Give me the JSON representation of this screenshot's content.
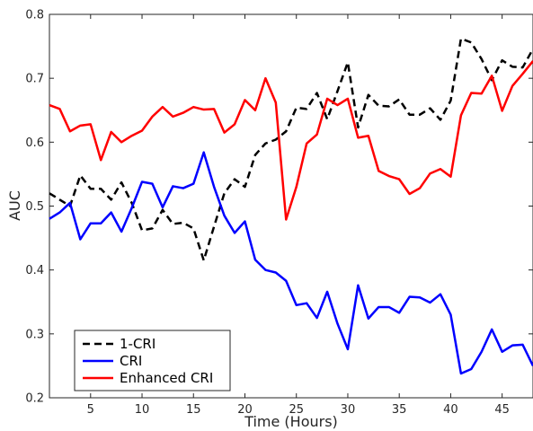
{
  "chart_data": {
    "type": "line",
    "xlabel": "Time (Hours)",
    "ylabel": "AUC",
    "xlim": [
      1,
      48
    ],
    "ylim": [
      0.2,
      0.8
    ],
    "xticks": [
      5,
      10,
      15,
      20,
      25,
      30,
      35,
      40,
      45
    ],
    "yticks": [
      0.2,
      0.3,
      0.4,
      0.5,
      0.6,
      0.7,
      0.8
    ],
    "grid": false,
    "legend_position": "bottom-left",
    "x": [
      1,
      2,
      3,
      4,
      5,
      6,
      7,
      8,
      9,
      10,
      11,
      12,
      13,
      14,
      15,
      16,
      17,
      18,
      19,
      20,
      21,
      22,
      23,
      24,
      25,
      26,
      27,
      28,
      29,
      30,
      31,
      32,
      33,
      34,
      35,
      36,
      37,
      38,
      39,
      40,
      41,
      42,
      43,
      44,
      45,
      46,
      47,
      48
    ],
    "series": [
      {
        "name": "1-CRI",
        "color": "#000000",
        "dash": "dashed",
        "values": [
          0.52,
          0.51,
          0.5,
          0.548,
          0.527,
          0.527,
          0.51,
          0.537,
          0.505,
          0.462,
          0.465,
          0.494,
          0.472,
          0.474,
          0.465,
          0.415,
          0.468,
          0.52,
          0.542,
          0.53,
          0.58,
          0.598,
          0.604,
          0.617,
          0.654,
          0.652,
          0.677,
          0.636,
          0.68,
          0.725,
          0.623,
          0.674,
          0.657,
          0.656,
          0.667,
          0.643,
          0.643,
          0.653,
          0.635,
          0.665,
          0.762,
          0.756,
          0.73,
          0.697,
          0.728,
          0.718,
          0.717,
          0.746
        ]
      },
      {
        "name": "CRI",
        "color": "#0000ff",
        "dash": "solid",
        "values": [
          0.48,
          0.49,
          0.505,
          0.448,
          0.473,
          0.473,
          0.49,
          0.46,
          0.497,
          0.538,
          0.535,
          0.498,
          0.531,
          0.528,
          0.535,
          0.584,
          0.53,
          0.485,
          0.458,
          0.476,
          0.416,
          0.4,
          0.396,
          0.383,
          0.345,
          0.348,
          0.325,
          0.366,
          0.316,
          0.276,
          0.376,
          0.324,
          0.342,
          0.342,
          0.333,
          0.358,
          0.357,
          0.349,
          0.362,
          0.33,
          0.238,
          0.245,
          0.272,
          0.307,
          0.272,
          0.282,
          0.283,
          0.25
        ]
      },
      {
        "name": "Enhanced CRI",
        "color": "#ff0000",
        "dash": "solid",
        "values": [
          0.658,
          0.652,
          0.617,
          0.626,
          0.628,
          0.572,
          0.616,
          0.6,
          0.61,
          0.618,
          0.64,
          0.655,
          0.64,
          0.646,
          0.655,
          0.651,
          0.652,
          0.615,
          0.628,
          0.666,
          0.65,
          0.7,
          0.662,
          0.479,
          0.53,
          0.598,
          0.612,
          0.668,
          0.658,
          0.668,
          0.607,
          0.61,
          0.555,
          0.547,
          0.542,
          0.519,
          0.528,
          0.551,
          0.558,
          0.546,
          0.642,
          0.677,
          0.676,
          0.704,
          0.649,
          0.688,
          0.707,
          0.727
        ]
      }
    ]
  }
}
